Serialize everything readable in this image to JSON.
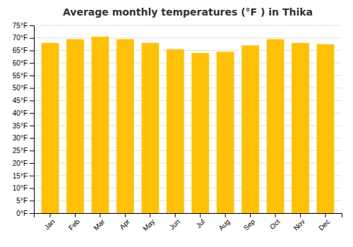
{
  "chart_data": {
    "type": "bar",
    "title": "Average monthly temperatures (°F ) in Thika",
    "categories": [
      "Jan",
      "Feb",
      "Mar",
      "Apr",
      "May",
      "Jun",
      "Jul",
      "Aug",
      "Sep",
      "Oct",
      "Nov",
      "Dec"
    ],
    "values": [
      68,
      69.5,
      70.5,
      69.5,
      68,
      65.5,
      64,
      64.5,
      67,
      69.5,
      68,
      67.5
    ],
    "color": "#FFC107",
    "ylim": [
      0,
      75
    ],
    "yticks": [
      {
        "value": 0,
        "label": "0°F"
      },
      {
        "value": 5,
        "label": "5°F"
      },
      {
        "value": 10,
        "label": "10°F"
      },
      {
        "value": 15,
        "label": "15°F"
      },
      {
        "value": 20,
        "label": "20°F"
      },
      {
        "value": 25,
        "label": "25°F"
      },
      {
        "value": 30,
        "label": "30°F"
      },
      {
        "value": 35,
        "label": "35°F"
      },
      {
        "value": 40,
        "label": "40°F"
      },
      {
        "value": 45,
        "label": "45°F"
      },
      {
        "value": 50,
        "label": "50°F"
      },
      {
        "value": 55,
        "label": "55°F"
      },
      {
        "value": 60,
        "label": "60°F"
      },
      {
        "value": 65,
        "label": "65°F"
      },
      {
        "value": 70,
        "label": "70°F"
      },
      {
        "value": 75,
        "label": "75°F"
      }
    ],
    "grid": true
  }
}
